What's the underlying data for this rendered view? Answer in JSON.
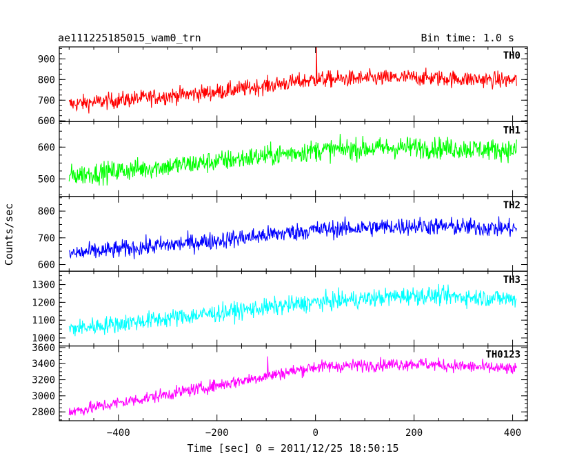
{
  "header": {
    "obs_id": "ae111225185015_wam0_trn",
    "bin_time": "Bin time: 1.0 s"
  },
  "chart_data": {
    "type": "line",
    "xlabel": "Time [sec] 0 = 2011/12/25 18:50:15",
    "ylabel": "Counts/sec",
    "x_range": [
      -500,
      408
    ],
    "xlim": [
      -520,
      430
    ],
    "xticks": [
      -400,
      -200,
      0,
      200,
      400
    ],
    "xtick_labels": [
      "−400",
      "−200",
      "0",
      "200",
      "400"
    ],
    "panels": [
      {
        "name": "TH0",
        "color": "#ff0000",
        "ylim": [
          596,
          958
        ],
        "yticks": [
          600,
          700,
          800,
          900
        ],
        "trend_x": [
          -500,
          -200,
          0,
          200,
          408
        ],
        "trend_y": [
          680,
          740,
          800,
          810,
          795
        ],
        "noise": 38,
        "spike": {
          "x": 2,
          "y": 958
        }
      },
      {
        "name": "TH1",
        "color": "#00ff00",
        "ylim": [
          445,
          680
        ],
        "yticks": [
          500,
          600
        ],
        "trend_x": [
          -500,
          -200,
          0,
          200,
          408
        ],
        "trend_y": [
          510,
          555,
          590,
          600,
          590
        ],
        "noise": 32
      },
      {
        "name": "TH2",
        "color": "#0000ff",
        "ylim": [
          575,
          855
        ],
        "yticks": [
          600,
          700,
          800
        ],
        "trend_x": [
          -500,
          -200,
          0,
          200,
          408
        ],
        "trend_y": [
          640,
          690,
          730,
          745,
          735
        ],
        "noise": 32
      },
      {
        "name": "TH3",
        "color": "#00ffff",
        "ylim": [
          955,
          1375
        ],
        "yticks": [
          1000,
          1100,
          1200,
          1300
        ],
        "trend_x": [
          -500,
          -200,
          0,
          200,
          408
        ],
        "trend_y": [
          1050,
          1140,
          1200,
          1240,
          1220
        ],
        "noise": 48
      },
      {
        "name": "TH0123",
        "color": "#ff00ff",
        "ylim": [
          2690,
          3620
        ],
        "yticks": [
          2800,
          3000,
          3200,
          3400,
          3600
        ],
        "trend_x": [
          -500,
          -200,
          0,
          200,
          408
        ],
        "trend_y": [
          2800,
          3130,
          3360,
          3400,
          3330
        ],
        "noise": 75,
        "spike": {
          "x": -97,
          "y": 3490
        }
      }
    ]
  }
}
